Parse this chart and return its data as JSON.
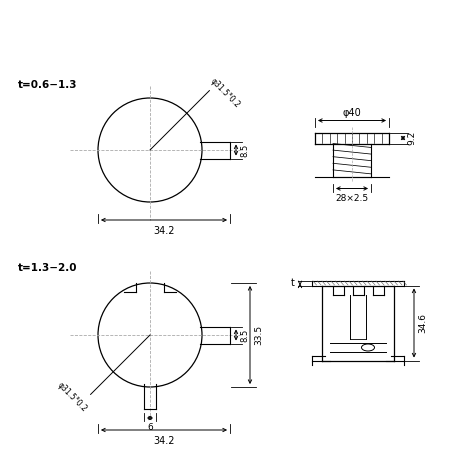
{
  "bg_color": "#ffffff",
  "line_color": "#000000",
  "figsize": [
    4.54,
    4.51
  ],
  "dpi": 100,
  "top_left_label": "t=0.6−1.3",
  "bottom_left_label": "t=1.3−2.0",
  "dim_34_2": "34.2",
  "dim_8_5": "8.5",
  "dim_31_5": "φ31.5°0.2",
  "dim_33_5": "33.5",
  "dim_6": "6",
  "dim_40": "φ40",
  "dim_9_2": "9.2",
  "dim_28x25": "28×2.5",
  "dim_34_6": "34.6",
  "dim_t": "t"
}
